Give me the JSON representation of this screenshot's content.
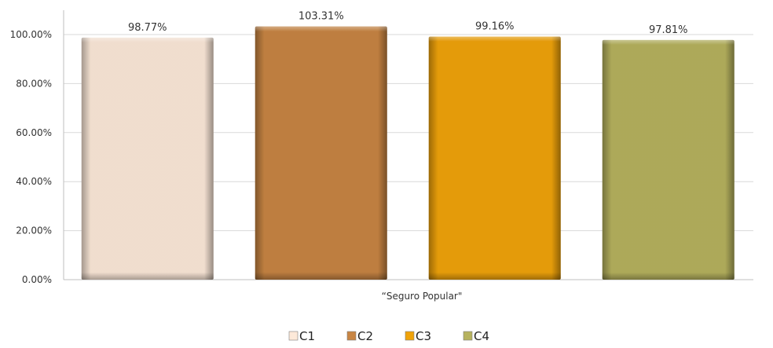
{
  "chart_data": {
    "type": "bar",
    "categories": [
      "“Seguro Popular\""
    ],
    "series": [
      {
        "name": "C1",
        "values": [
          98.77
        ],
        "label": "98.77%",
        "color": "#FDE9D9"
      },
      {
        "name": "C2",
        "values": [
          103.31
        ],
        "label": "103.31%",
        "color": "#C88543"
      },
      {
        "name": "C3",
        "values": [
          99.16
        ],
        "label": "99.16%",
        "color": "#F0A30A"
      },
      {
        "name": "C4",
        "values": [
          97.81
        ],
        "label": "97.81%",
        "color": "#B6B25E"
      }
    ],
    "yticks": [
      "0.00%",
      "20.00%",
      "40.00%",
      "60.00%",
      "80.00%",
      "100.00%"
    ],
    "ylim": [
      0,
      100
    ],
    "grid": true,
    "legend": "bottom-center",
    "title": "",
    "xlabel": "",
    "ylabel": ""
  }
}
